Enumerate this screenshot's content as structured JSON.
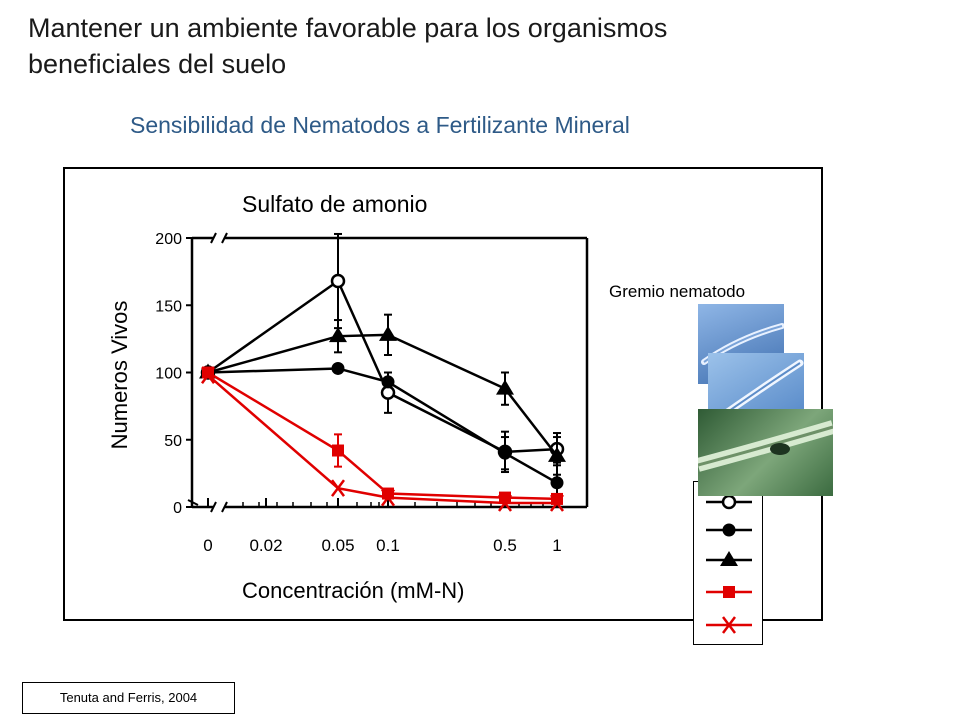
{
  "slide": {
    "title": "Mantener un ambiente favorable para los organismos beneficiales del suelo",
    "subtitle": "Sensibilidad de Nematodos a Fertilizante Mineral",
    "citation": "Tenuta and Ferris, 2004"
  },
  "colors": {
    "black": "#000000",
    "red": "#e00000",
    "subtitle": "#2e5a87"
  },
  "chart_data": {
    "type": "line",
    "title": "Sulfato de amonio",
    "xlabel": "Concentración (mM-N)",
    "ylabel": "Numeros Vivos",
    "x_axis": "categorical (non-uniform), axis break after 0",
    "categories": [
      "0",
      "0.02",
      "0.05",
      "0.1",
      "0.5",
      "1"
    ],
    "ylim": [
      0,
      200
    ],
    "yticks": [
      "0",
      "50",
      "100",
      "150",
      "200"
    ],
    "legend_title": "Gremio nematodo",
    "legend_position": "right",
    "series": [
      {
        "marker": "open-circle",
        "color": "#000000",
        "x": [
          0,
          0.05,
          0.1,
          0.5,
          1
        ],
        "y": [
          100,
          168,
          85,
          41,
          43
        ],
        "err": [
          0,
          35,
          15,
          15,
          12
        ]
      },
      {
        "marker": "filled-circle",
        "color": "#000000",
        "x": [
          0,
          0.05,
          0.1,
          0.5,
          1
        ],
        "y": [
          100,
          103,
          93,
          40,
          18
        ],
        "err": [
          0,
          3,
          3,
          12,
          15
        ]
      },
      {
        "marker": "triangle",
        "color": "#000000",
        "x": [
          0,
          0.05,
          0.1,
          0.5,
          1
        ],
        "y": [
          100,
          127,
          128,
          88,
          38
        ],
        "err": [
          0,
          12,
          15,
          12,
          14
        ]
      },
      {
        "marker": "square",
        "color": "#e00000",
        "x": [
          0,
          0.05,
          0.1,
          0.5,
          1
        ],
        "y": [
          100,
          42,
          10,
          7,
          6
        ],
        "err": [
          0,
          12,
          3,
          3,
          3
        ]
      },
      {
        "marker": "x",
        "color": "#e00000",
        "x": [
          0,
          0.05,
          0.1,
          0.5,
          1
        ],
        "y": [
          98,
          14,
          7,
          3,
          3
        ],
        "err": [
          0,
          0,
          0,
          0,
          0
        ]
      }
    ]
  }
}
